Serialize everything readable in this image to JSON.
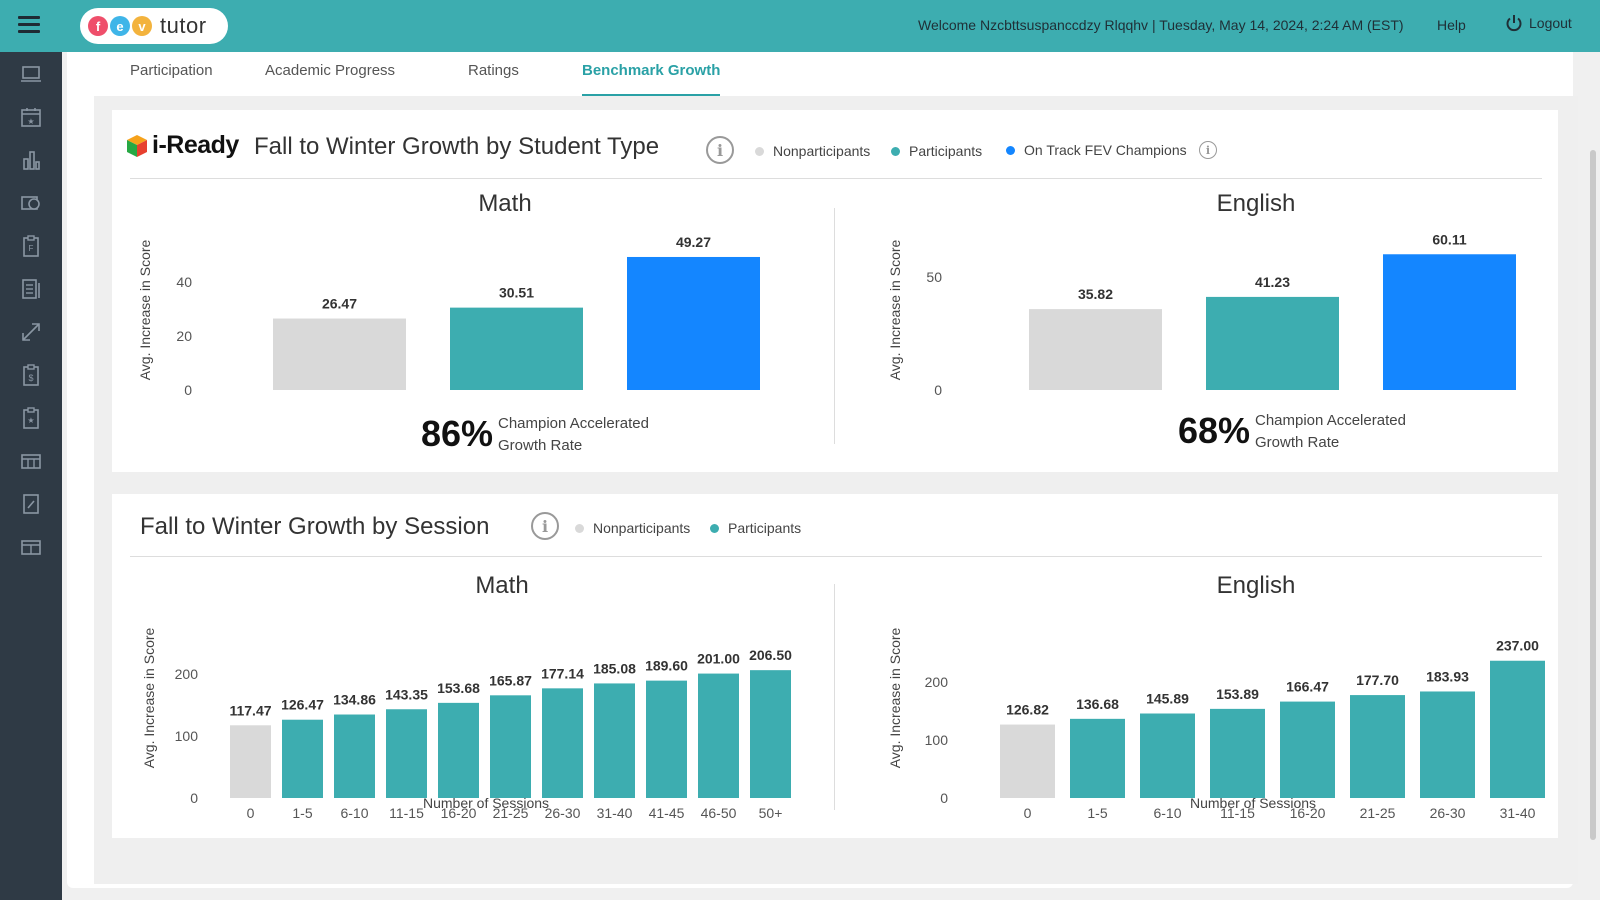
{
  "header": {
    "logo_letters": [
      "f",
      "e",
      "v"
    ],
    "logo_colors": [
      "#ef4f6b",
      "#3fb5e8",
      "#f3b33d"
    ],
    "logo_word": "tutor",
    "welcome": "Welcome Nzcbttsuspanccdzy Rlqqhv |  Tuesday, May 14, 2024, 2:24 AM (EST)",
    "help": "Help",
    "logout": "Logout"
  },
  "sidebar": {
    "icons": [
      "laptop-icon",
      "calendar-star-icon",
      "bar-chart-icon",
      "camera-icon",
      "clipboard-f-icon",
      "report-list-icon",
      "expand-arrows-icon",
      "clipboard-dollar-icon",
      "clipboard-star-icon",
      "card-list-icon",
      "document-edit-icon",
      "card-list-icon-2"
    ]
  },
  "tabs": [
    "Participation",
    "Academic Progress",
    "Ratings",
    "Benchmark Growth"
  ],
  "active_tab": "Benchmark Growth",
  "colors": {
    "nonparticipants": "#d9d9d9",
    "participants": "#3dadb0",
    "champions": "#1486ff",
    "brand": "#3dadb0"
  },
  "section1": {
    "brand": "i-Ready",
    "title": "Fall to Winter Growth by Student Type",
    "info": "i",
    "legend": [
      "Nonparticipants",
      "Participants",
      "On Track FEV Champions"
    ],
    "math": {
      "title": "Math",
      "rate": "86%",
      "rate_label": "Champion Accelerated Growth Rate"
    },
    "english": {
      "title": "English",
      "rate": "68%",
      "rate_label": "Champion Accelerated Growth Rate"
    }
  },
  "section2": {
    "title": "Fall to Winter Growth by Session",
    "info": "i",
    "legend": [
      "Nonparticipants",
      "Participants"
    ],
    "math": {
      "title": "Math"
    },
    "english": {
      "title": "English"
    }
  },
  "chart_data": [
    {
      "type": "bar",
      "title": "Math",
      "ylabel": "Avg. Increase in Score",
      "xlabel": "",
      "ylim": [
        0,
        50
      ],
      "yticks": [
        0,
        20,
        40
      ],
      "categories": [
        "Nonparticipants",
        "Participants",
        "On Track FEV Champions"
      ],
      "values": [
        26.47,
        30.51,
        49.27
      ],
      "labels": [
        "26.47",
        "30.51",
        "49.27"
      ],
      "colors": [
        "#d9d9d9",
        "#3dadb0",
        "#1486ff"
      ]
    },
    {
      "type": "bar",
      "title": "English",
      "ylabel": "Avg. Increase in Score",
      "xlabel": "",
      "ylim": [
        0,
        62
      ],
      "yticks": [
        0,
        50
      ],
      "categories": [
        "Nonparticipants",
        "Participants",
        "On Track FEV Champions"
      ],
      "values": [
        35.82,
        41.23,
        60.11
      ],
      "labels": [
        "35.82",
        "41.23",
        "60.11"
      ],
      "colors": [
        "#d9d9d9",
        "#3dadb0",
        "#1486ff"
      ]
    },
    {
      "type": "bar",
      "title": "Math",
      "ylabel": "Avg. Increase in Score",
      "xlabel": "Number of Sessions",
      "ylim": [
        0,
        210
      ],
      "yticks": [
        0,
        100,
        200
      ],
      "categories": [
        "0",
        "1-5",
        "6-10",
        "11-15",
        "16-20",
        "21-25",
        "26-30",
        "31-40",
        "41-45",
        "46-50",
        "50+"
      ],
      "values": [
        117.47,
        126.47,
        134.86,
        143.35,
        153.68,
        165.87,
        177.14,
        185.08,
        189.6,
        201.0,
        206.5
      ],
      "labels": [
        "117.47",
        "126.47",
        "134.86",
        "143.35",
        "153.68",
        "165.87",
        "177.14",
        "185.08",
        "189.60",
        "201.00",
        "206.50"
      ],
      "colors": [
        "#d9d9d9",
        "#3dadb0",
        "#3dadb0",
        "#3dadb0",
        "#3dadb0",
        "#3dadb0",
        "#3dadb0",
        "#3dadb0",
        "#3dadb0",
        "#3dadb0",
        "#3dadb0"
      ]
    },
    {
      "type": "bar",
      "title": "English",
      "ylabel": "Avg. Increase in Score",
      "xlabel": "Number of Sessions",
      "ylim": [
        0,
        240
      ],
      "yticks": [
        0,
        100,
        200
      ],
      "categories": [
        "0",
        "1-5",
        "6-10",
        "11-15",
        "16-20",
        "21-25",
        "26-30",
        "31-40"
      ],
      "values": [
        126.82,
        136.68,
        145.89,
        153.89,
        166.47,
        177.7,
        183.93,
        237.0
      ],
      "labels": [
        "126.82",
        "136.68",
        "145.89",
        "153.89",
        "166.47",
        "177.70",
        "183.93",
        "237.00"
      ],
      "colors": [
        "#d9d9d9",
        "#3dadb0",
        "#3dadb0",
        "#3dadb0",
        "#3dadb0",
        "#3dadb0",
        "#3dadb0",
        "#3dadb0"
      ]
    }
  ]
}
